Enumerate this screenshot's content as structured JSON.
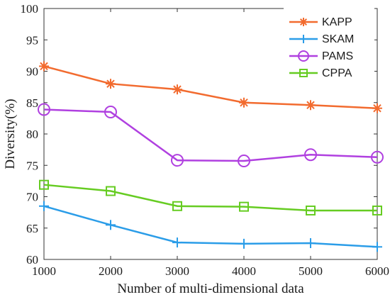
{
  "chart_data": {
    "type": "line",
    "title": "",
    "xlabel": "Number of multi-dimensional data",
    "ylabel": "Diversity(%)",
    "x": [
      1000,
      2000,
      3000,
      4000,
      5000,
      6000
    ],
    "xlim": [
      1000,
      6000
    ],
    "ylim": [
      60,
      100
    ],
    "xticks": [
      "1000",
      "2000",
      "3000",
      "4000",
      "5000",
      "6000"
    ],
    "yticks": [
      "60",
      "65",
      "70",
      "75",
      "80",
      "85",
      "90",
      "95",
      "100"
    ],
    "grid": false,
    "legend_position": "top-right",
    "series": [
      {
        "name": "KAPP",
        "values": [
          90.8,
          88.0,
          87.1,
          85.0,
          84.6,
          84.1
        ],
        "color": "#f26b2f",
        "marker": "asterisk"
      },
      {
        "name": "SKAM",
        "values": [
          68.5,
          65.5,
          62.7,
          62.5,
          62.6,
          62.0
        ],
        "color": "#2b9de8",
        "marker": "plus"
      },
      {
        "name": "PAMS",
        "values": [
          83.9,
          83.5,
          75.8,
          75.7,
          76.7,
          76.3
        ],
        "color": "#b040e0",
        "marker": "circle"
      },
      {
        "name": "CPPA",
        "values": [
          71.9,
          70.9,
          68.5,
          68.4,
          67.8,
          67.8
        ],
        "color": "#66cc22",
        "marker": "square"
      }
    ]
  }
}
